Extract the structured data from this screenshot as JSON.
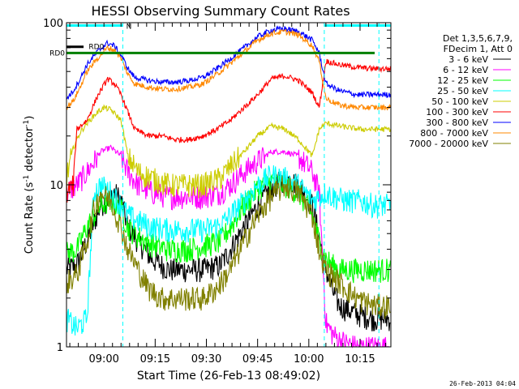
{
  "chart_data": {
    "type": "line",
    "title": "HESSI Observing Summary Count Rates",
    "xlabel": "Start Time (26-Feb-13 08:49:02)",
    "ylabel_main": "Count Rate (s",
    "ylabel_sup": "-1",
    "ylabel_tail": " detector",
    "ylabel_sup2": "-1",
    "ylabel_close": ")",
    "yscale": "log",
    "ylim": [
      1,
      100
    ],
    "y_ticks": [
      {
        "value": 1,
        "label": "1"
      },
      {
        "value": 10,
        "label": "10"
      },
      {
        "value": 100,
        "label": "100"
      }
    ],
    "xlim_minutes": [
      0,
      95
    ],
    "x_ticks": [
      {
        "minutes": 10.97,
        "label": "09:00"
      },
      {
        "minutes": 25.97,
        "label": "09:15"
      },
      {
        "minutes": 40.97,
        "label": "09:30"
      },
      {
        "minutes": 55.97,
        "label": "09:45"
      },
      {
        "minutes": 70.97,
        "label": "10:00"
      },
      {
        "minutes": 85.97,
        "label": "10:15"
      }
    ],
    "legend": {
      "placement": "right",
      "header": [
        "Det 1,3,5,6,7,9,",
        "FDecim 1, Att 0"
      ]
    },
    "flags": [
      {
        "name": "N",
        "color": "#00ffff",
        "segments": [
          [
            0,
            16.5
          ],
          [
            75.5,
            95
          ]
        ],
        "y": 96
      },
      {
        "name": "RD0",
        "color": "#008000",
        "label_left": "RD0",
        "y": 65
      },
      {
        "name": "RD0",
        "color": "#000000",
        "segments": [
          [
            0,
            5
          ]
        ],
        "y": 71
      }
    ],
    "vlines": [
      {
        "minutes": 16.5,
        "color": "#00ffff"
      },
      {
        "minutes": 75.5,
        "color": "#00ffff"
      },
      {
        "minutes": 91.5,
        "color": "#00ffff"
      }
    ],
    "stamp": "26-Feb-2013 04:04",
    "series": [
      {
        "name": "3 - 6 keV",
        "color": "#000000",
        "x": [
          0,
          3,
          6,
          10,
          14,
          16,
          18,
          21,
          25,
          30,
          35,
          40,
          45,
          48,
          52,
          56,
          60,
          64,
          68,
          72,
          74,
          76,
          78,
          80,
          85,
          90,
          95
        ],
        "y": [
          3.0,
          3.2,
          4.5,
          7.5,
          9.0,
          8.0,
          5.5,
          4.5,
          3.5,
          3.0,
          3.0,
          3.0,
          3.2,
          4.0,
          5.5,
          7.5,
          9.5,
          11,
          10,
          7.5,
          4.8,
          3.0,
          2.2,
          1.8,
          1.6,
          1.5,
          1.5
        ]
      },
      {
        "name": "6 - 12 keV",
        "color": "#ff00ff",
        "x": [
          0,
          3,
          6,
          10,
          13,
          16,
          18,
          21,
          25,
          30,
          35,
          40,
          45,
          48,
          52,
          56,
          60,
          64,
          68,
          72,
          74,
          76,
          78,
          80,
          85,
          90,
          95
        ],
        "y": [
          9.0,
          10,
          12,
          16,
          17,
          15,
          12,
          10,
          9.0,
          8.5,
          8.5,
          8.5,
          9.0,
          10,
          12,
          14,
          16,
          16,
          15,
          12,
          9.0,
          1.4,
          1.2,
          1.1,
          1.0,
          1.0,
          1.0
        ]
      },
      {
        "name": "12 - 25 keV",
        "color": "#00ff00",
        "x": [
          0,
          3,
          6,
          10,
          13,
          16,
          18,
          21,
          25,
          30,
          35,
          40,
          45,
          48,
          52,
          56,
          60,
          64,
          68,
          72,
          74,
          76,
          78,
          80,
          85,
          90,
          95
        ],
        "y": [
          3.8,
          4.0,
          5.5,
          7.5,
          8.0,
          7.0,
          5.5,
          4.8,
          4.3,
          4.0,
          4.0,
          4.2,
          4.5,
          5.5,
          7.5,
          9.5,
          10.5,
          10,
          9.0,
          6.5,
          4.5,
          3.5,
          3.2,
          3.0,
          3.0,
          3.0,
          3.0
        ]
      },
      {
        "name": "25 - 50 keV",
        "color": "#00ffff",
        "x": [
          0,
          3,
          6,
          8,
          10,
          13,
          16,
          18,
          21,
          25,
          30,
          35,
          40,
          45,
          48,
          52,
          56,
          60,
          64,
          68,
          72,
          74,
          76,
          78,
          82,
          86,
          90,
          95
        ],
        "y": [
          1.5,
          1.3,
          1.5,
          9.0,
          10,
          9.0,
          7.5,
          6.5,
          6.0,
          5.5,
          5.3,
          5.3,
          5.3,
          5.6,
          6.5,
          8.0,
          10,
          11.5,
          11,
          10,
          8.0,
          8.5,
          9.0,
          8.5,
          8.0,
          8.0,
          7.5,
          7.5
        ]
      },
      {
        "name": "50 - 100 keV",
        "color": "#cccc00",
        "x": [
          0,
          2,
          4,
          6,
          9,
          11,
          13,
          16,
          18,
          21,
          25,
          30,
          35,
          40,
          45,
          48,
          52,
          56,
          60,
          64,
          68,
          72,
          74,
          76,
          80,
          86,
          90,
          95
        ],
        "y": [
          11,
          17,
          21,
          24,
          28,
          30,
          29,
          25,
          15,
          12,
          11,
          10,
          10,
          10,
          11,
          13,
          16,
          20,
          23,
          22,
          19,
          15,
          22,
          24,
          23,
          22,
          22,
          22
        ]
      },
      {
        "name": "100 - 300 keV",
        "color": "#ff0000",
        "x": [
          0,
          2,
          3,
          6,
          9,
          12,
          14,
          16,
          18,
          20,
          24,
          28,
          32,
          36,
          40,
          44,
          48,
          52,
          56,
          60,
          64,
          68,
          72,
          74,
          76,
          80,
          85,
          90,
          95
        ],
        "y": [
          9.0,
          10,
          22,
          25,
          35,
          45,
          42,
          36,
          28,
          22,
          20,
          20,
          19,
          19,
          20,
          22,
          25,
          30,
          36,
          45,
          47,
          44,
          37,
          30,
          58,
          55,
          53,
          52,
          52
        ]
      },
      {
        "name": "300 - 800 keV",
        "color": "#0000ff",
        "x": [
          0,
          2,
          4,
          6,
          9,
          12,
          14,
          16,
          18,
          20,
          24,
          28,
          32,
          36,
          40,
          44,
          48,
          52,
          56,
          60,
          64,
          68,
          72,
          74,
          76,
          80,
          85,
          90,
          95
        ],
        "y": [
          34,
          38,
          45,
          55,
          66,
          75,
          72,
          63,
          52,
          46,
          44,
          43,
          43,
          44,
          46,
          52,
          60,
          70,
          82,
          90,
          92,
          88,
          78,
          65,
          42,
          38,
          36,
          36,
          36
        ]
      },
      {
        "name": "800 - 7000 keV",
        "color": "#ff8800",
        "x": [
          0,
          2,
          4,
          6,
          9,
          12,
          14,
          16,
          18,
          20,
          24,
          28,
          32,
          36,
          40,
          44,
          48,
          52,
          56,
          60,
          64,
          68,
          72,
          74,
          76,
          80,
          85,
          90,
          95
        ],
        "y": [
          30,
          33,
          40,
          50,
          60,
          70,
          68,
          60,
          48,
          42,
          40,
          39,
          39,
          40,
          42,
          48,
          56,
          66,
          78,
          86,
          88,
          84,
          72,
          58,
          34,
          31,
          30,
          30,
          30
        ]
      },
      {
        "name": "7000 - 20000 keV",
        "color": "#808000",
        "x": [
          0,
          3,
          6,
          8,
          10,
          13,
          16,
          18,
          21,
          24,
          28,
          32,
          36,
          40,
          44,
          48,
          52,
          56,
          60,
          64,
          68,
          72,
          74,
          76,
          80,
          85,
          90,
          95
        ],
        "y": [
          2.5,
          2.8,
          4.5,
          7.0,
          9.0,
          8.0,
          5.5,
          4.0,
          3.0,
          2.3,
          2.0,
          2.0,
          2.0,
          2.0,
          2.3,
          3.0,
          4.5,
          6.5,
          8.5,
          10,
          9.0,
          6.5,
          4.0,
          3.0,
          2.5,
          2.0,
          1.8,
          1.8
        ]
      }
    ]
  }
}
